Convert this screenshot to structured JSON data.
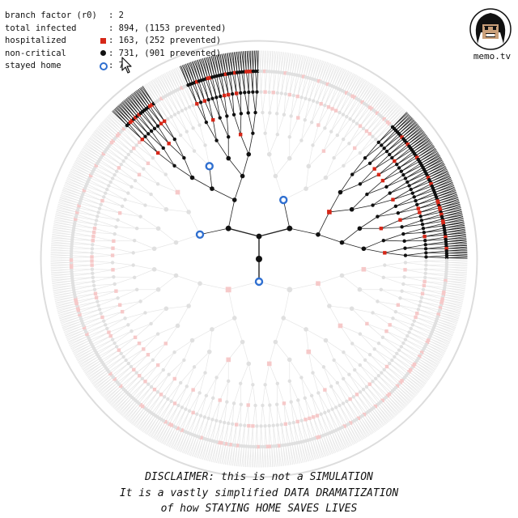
{
  "stats": {
    "branch_factor": {
      "label": "branch factor (r0)",
      "value": ": 2"
    },
    "total_infected": {
      "label": "total infected",
      "value": ": 894, (1153 prevented)"
    },
    "hospitalized": {
      "label": "hospitalized",
      "marker": "red-square-icon",
      "value": ": 163, (252 prevented)"
    },
    "non_critical": {
      "label": "non-critical",
      "marker": "black-dot-icon",
      "value": ": 731, (901 prevented)"
    },
    "stayed_home": {
      "label": "stayed home",
      "marker": "blue-ring-icon",
      "value": ": 7"
    }
  },
  "brand": {
    "name": "memo.tv"
  },
  "disclaimer": {
    "line1": "DISCLAIMER: this is not a SIMULATION",
    "line2": "It is a vastly simplified DATA DRAMATIZATION",
    "line3": "of how STAYING HOME SAVES LIVES"
  },
  "colors": {
    "hospitalized": "#d62718",
    "non_critical": "#111111",
    "stayed_home": "#2f6fd0",
    "prevented_node": "#e0e0e0",
    "prevented_hospital": "#f6c9c9",
    "edge": "#222222",
    "prevented_edge": "#e6e6e6"
  }
}
